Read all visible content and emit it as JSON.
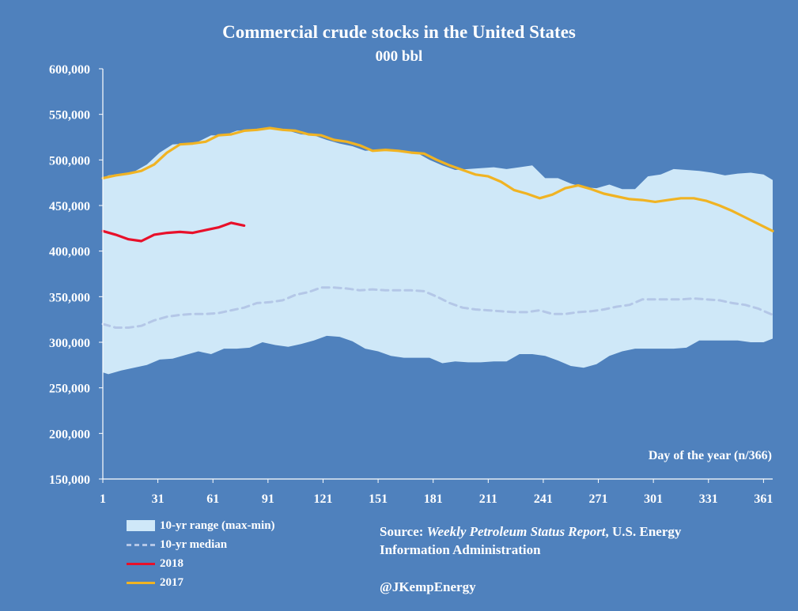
{
  "chart_data": {
    "type": "area",
    "title": "Commercial crude stocks in the United States",
    "subtitle": "000 bbl",
    "xlabel": "Day of the year (n/366)",
    "ylabel": "",
    "xlim": [
      1,
      366
    ],
    "ylim": [
      150000,
      600000
    ],
    "x_ticks": [
      "1",
      "31",
      "61",
      "91",
      "121",
      "151",
      "181",
      "211",
      "241",
      "271",
      "301",
      "331",
      "361"
    ],
    "y_ticks": [
      "600,000",
      "550,000",
      "500,000",
      "450,000",
      "400,000",
      "350,000",
      "300,000",
      "250,000",
      "200,000",
      "150,000"
    ],
    "range": {
      "name": "10-yr range (max-min)",
      "x": [
        1,
        4,
        11,
        18,
        25,
        32,
        39,
        46,
        53,
        60,
        67,
        74,
        81,
        88,
        95,
        102,
        109,
        116,
        123,
        130,
        137,
        144,
        151,
        158,
        165,
        172,
        179,
        186,
        193,
        200,
        207,
        214,
        221,
        228,
        235,
        242,
        249,
        256,
        263,
        270,
        277,
        284,
        291,
        298,
        305,
        312,
        319,
        326,
        333,
        340,
        347,
        354,
        361,
        366
      ],
      "max": [
        480000,
        483000,
        485000,
        487000,
        495000,
        508000,
        517000,
        518000,
        520000,
        527000,
        527000,
        532000,
        533000,
        535000,
        533000,
        532000,
        528000,
        527000,
        522000,
        518000,
        515000,
        510000,
        511000,
        510000,
        508000,
        508000,
        500000,
        494000,
        489000,
        490000,
        491000,
        492000,
        490000,
        492000,
        494000,
        480000,
        480000,
        474000,
        470000,
        469000,
        473000,
        468000,
        468000,
        482000,
        484000,
        490000,
        489000,
        488000,
        486000,
        483000,
        485000,
        486000,
        484000,
        478000
      ],
      "min": [
        267000,
        265000,
        269000,
        272000,
        275000,
        281000,
        282000,
        286000,
        290000,
        287000,
        293000,
        293000,
        294000,
        300000,
        297000,
        295000,
        298000,
        302000,
        307000,
        306000,
        301000,
        293000,
        290000,
        285000,
        283000,
        283000,
        283000,
        277000,
        279000,
        278000,
        278000,
        279000,
        279000,
        287000,
        287000,
        285000,
        280000,
        274000,
        272000,
        276000,
        285000,
        290000,
        293000,
        293000,
        293000,
        293000,
        294000,
        302000,
        302000,
        302000,
        302000,
        300000,
        300000,
        304000
      ]
    },
    "series": [
      {
        "name": "10-yr median",
        "color": "#b4c7e7",
        "dash": true,
        "x": [
          1,
          8,
          15,
          22,
          29,
          36,
          43,
          50,
          57,
          64,
          71,
          78,
          85,
          92,
          99,
          106,
          113,
          120,
          127,
          134,
          141,
          148,
          155,
          162,
          169,
          176,
          183,
          190,
          197,
          204,
          211,
          218,
          225,
          232,
          239,
          246,
          253,
          260,
          267,
          274,
          281,
          288,
          295,
          302,
          309,
          316,
          323,
          330,
          337,
          344,
          351,
          358,
          366
        ],
        "values": [
          320000,
          316000,
          316000,
          318000,
          324000,
          328000,
          330000,
          331000,
          331000,
          332000,
          335000,
          338000,
          343000,
          344000,
          346000,
          352000,
          355000,
          360000,
          360000,
          359000,
          357000,
          358000,
          357000,
          357000,
          357000,
          356000,
          350000,
          343000,
          338000,
          336000,
          335000,
          334000,
          333000,
          333000,
          335000,
          331000,
          331000,
          333000,
          334000,
          336000,
          339000,
          341000,
          347000,
          347000,
          347000,
          347000,
          348000,
          347000,
          346000,
          343000,
          341000,
          337000,
          330000
        ]
      },
      {
        "name": "2018",
        "color": "#e8102a",
        "dash": false,
        "x": [
          1,
          8,
          15,
          22,
          29,
          36,
          43,
          50,
          57,
          64,
          71,
          78
        ],
        "values": [
          422000,
          418000,
          413000,
          411000,
          418000,
          420000,
          421000,
          420000,
          423000,
          426000,
          431000,
          428000
        ]
      },
      {
        "name": "2017",
        "color": "#f0b323",
        "dash": false,
        "x": [
          1,
          8,
          15,
          22,
          29,
          36,
          43,
          50,
          57,
          64,
          71,
          78,
          85,
          92,
          99,
          106,
          113,
          120,
          127,
          134,
          141,
          148,
          155,
          162,
          169,
          176,
          183,
          190,
          197,
          204,
          211,
          218,
          225,
          232,
          239,
          246,
          253,
          260,
          267,
          274,
          281,
          288,
          295,
          302,
          309,
          316,
          323,
          330,
          337,
          344,
          351,
          358,
          366
        ],
        "values": [
          480000,
          483000,
          485000,
          488000,
          495000,
          508000,
          517000,
          518000,
          520000,
          527000,
          528000,
          532000,
          533000,
          535000,
          533000,
          532000,
          528000,
          527000,
          522000,
          520000,
          516000,
          510000,
          511000,
          510000,
          508000,
          507000,
          500000,
          494000,
          489000,
          484000,
          482000,
          476000,
          467000,
          463000,
          458000,
          462000,
          469000,
          472000,
          468000,
          463000,
          460000,
          457000,
          456000,
          454000,
          456000,
          458000,
          458000,
          455000,
          450000,
          444000,
          437000,
          430000,
          422000
        ]
      }
    ],
    "legend": [
      {
        "label": "10-yr range (max-min)",
        "kind": "area",
        "color": "#cfe8f8"
      },
      {
        "label": "10-yr median",
        "kind": "dash",
        "color": "#b4c7e7"
      },
      {
        "label": "2018",
        "kind": "line",
        "color": "#e8102a"
      },
      {
        "label": "2017",
        "kind": "line",
        "color": "#f0b323"
      }
    ],
    "colors": {
      "background": "#4f81bd",
      "range_fill": "#cfe8f8",
      "axis": "#ffffff"
    },
    "grid": false,
    "legend_position": "bottom-left"
  },
  "source": {
    "prefix": "Source: ",
    "publication": "Weekly Petroleum Status Report",
    "suffix": ", U.S. Energy",
    "line2": "Information Administration",
    "handle": "@JKempEnergy"
  }
}
